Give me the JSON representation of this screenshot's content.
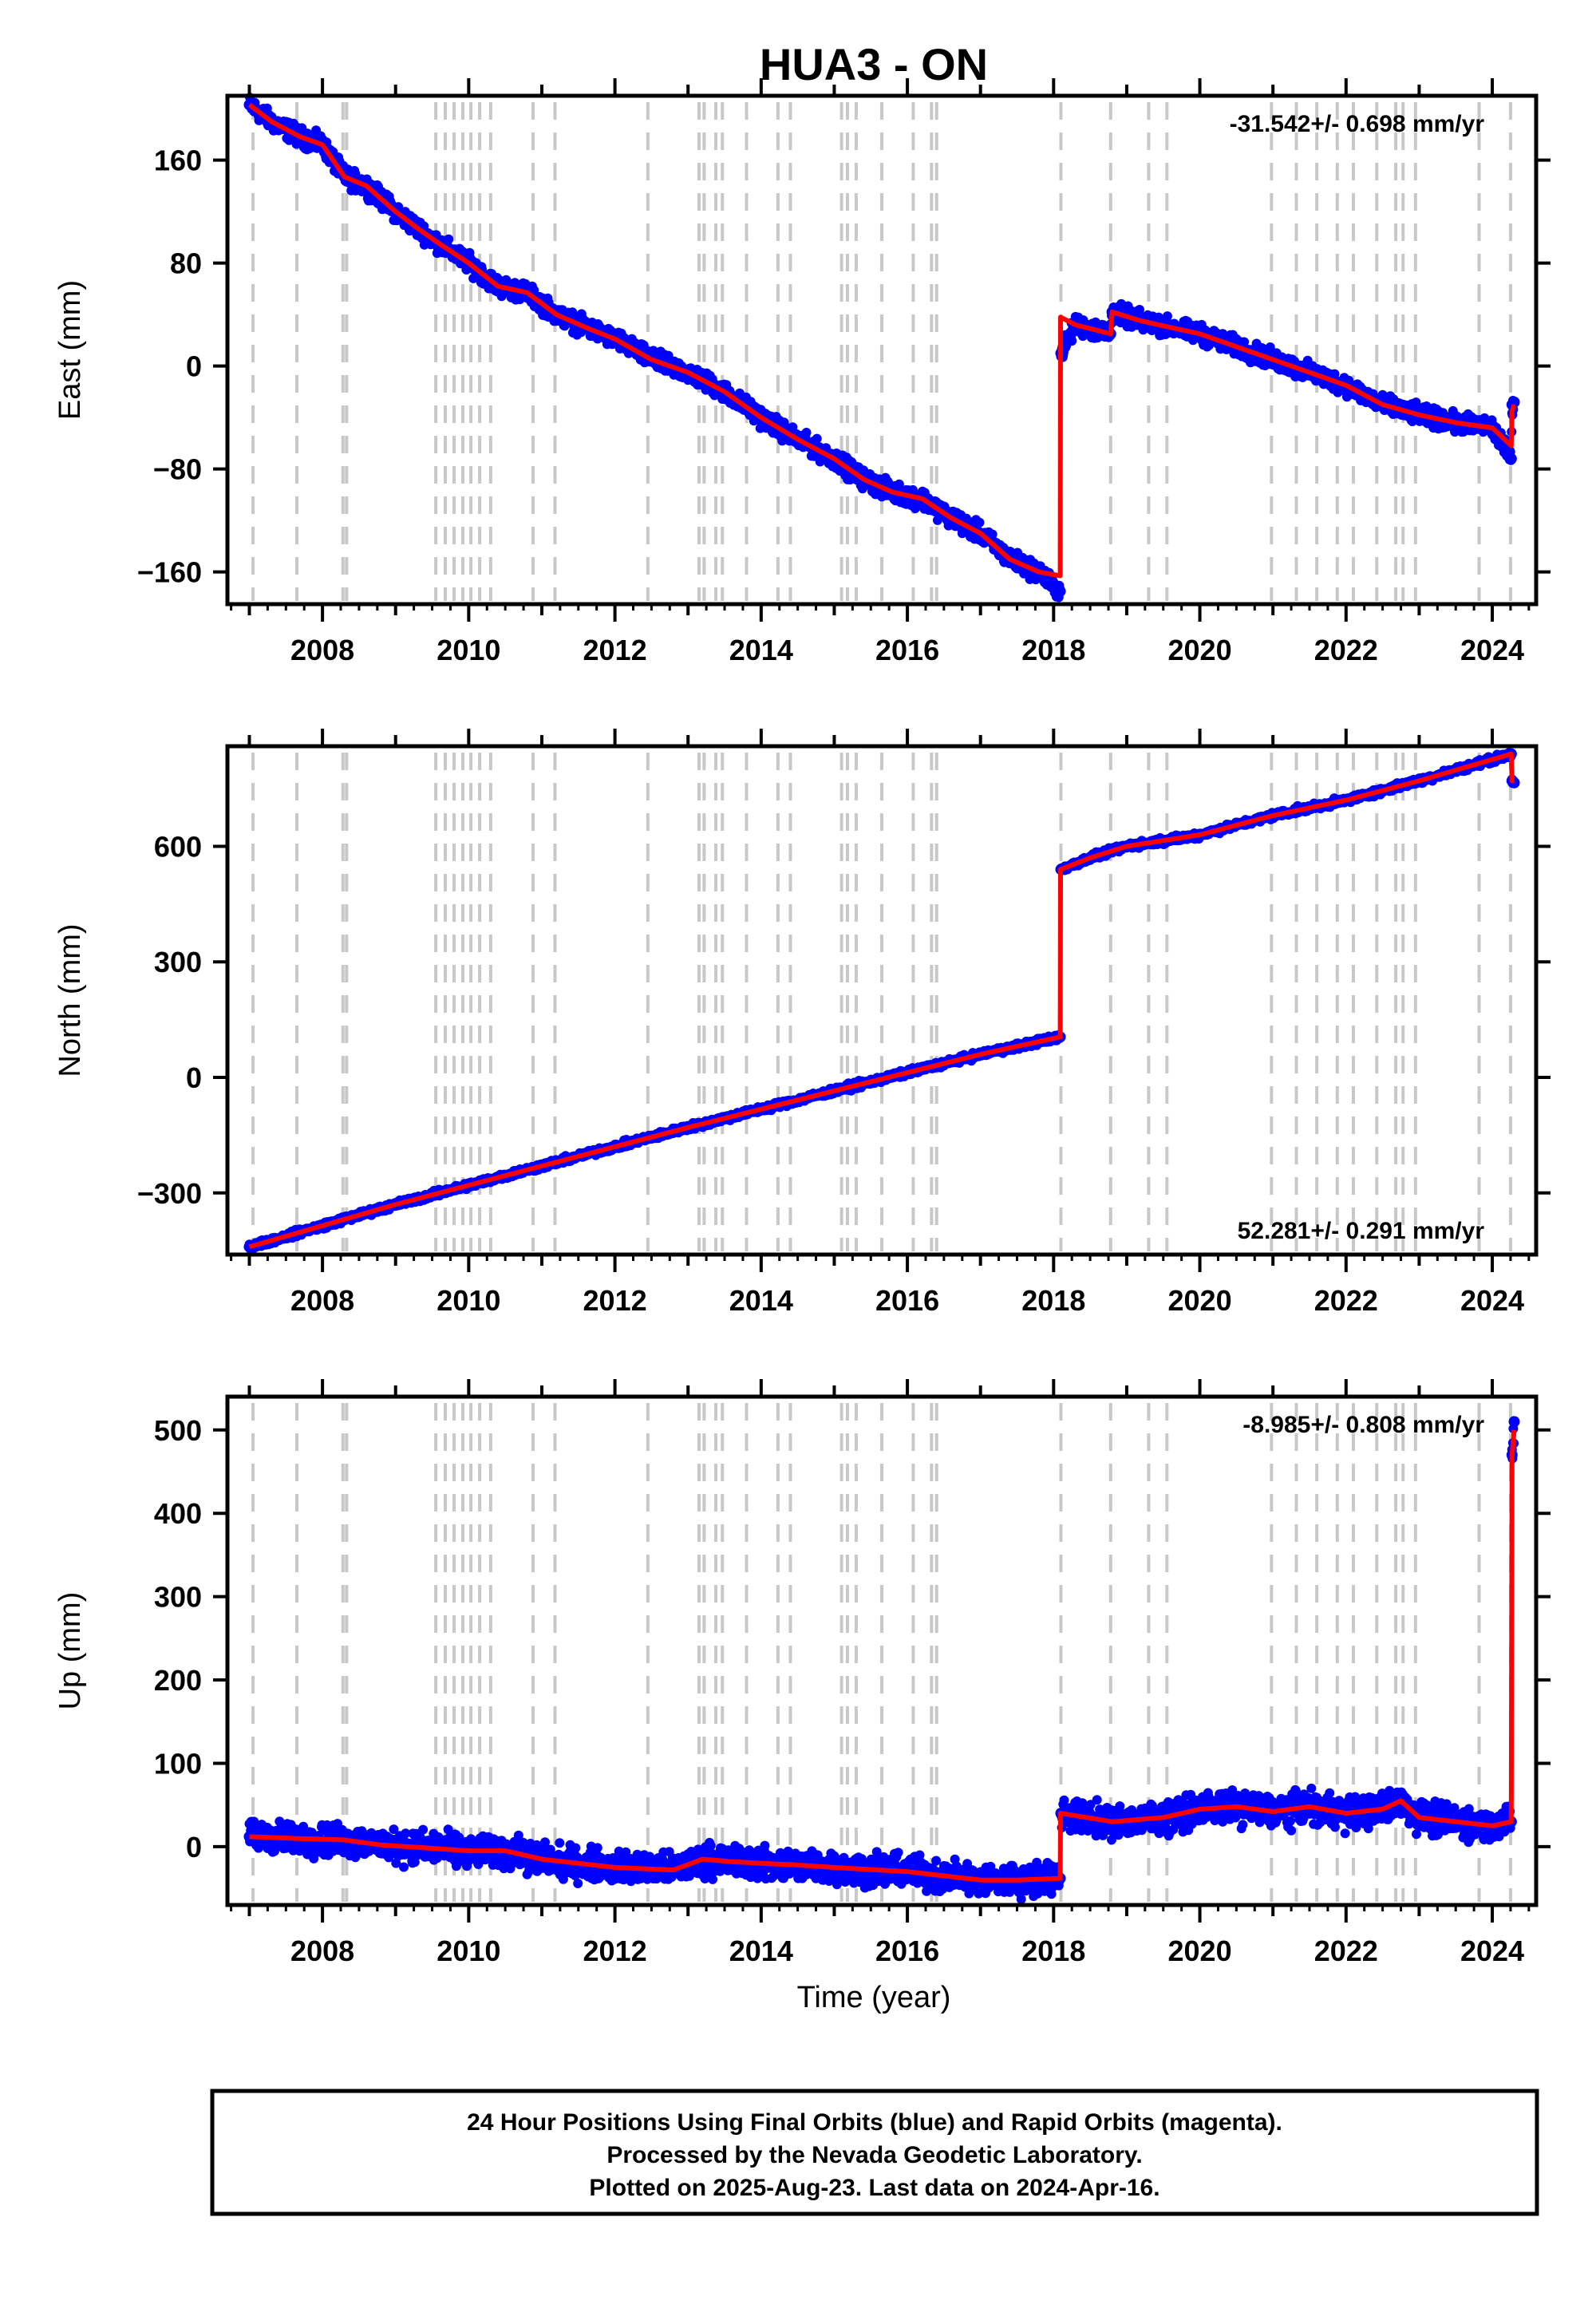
{
  "chart_data": {
    "type": "scatter",
    "title": "HUA3 - ON",
    "xlabel": "Time (year)",
    "xlim": [
      2006.7,
      2024.6
    ],
    "x_ticks": [
      2008,
      2010,
      2012,
      2014,
      2016,
      2018,
      2020,
      2022,
      2024
    ],
    "x_tick_labels": [
      "2008",
      "2010",
      "2012",
      "2014",
      "2016",
      "2018",
      "2020",
      "2022",
      "2024"
    ],
    "colors": {
      "observations": "#0000ff",
      "model": "#ff0000",
      "event_lines": "#c8c8c8",
      "frame": "#000000"
    },
    "event_lines": [
      2007.05,
      2007.65,
      2008.28,
      2008.33,
      2009.55,
      2009.68,
      2009.8,
      2009.92,
      2010.03,
      2010.15,
      2010.3,
      2010.88,
      2011.18,
      2012.45,
      2013.15,
      2013.22,
      2013.38,
      2013.47,
      2013.8,
      2014.23,
      2014.4,
      2015.1,
      2015.18,
      2015.3,
      2015.65,
      2016.08,
      2016.33,
      2016.4,
      2018.1,
      2018.78,
      2019.3,
      2019.55,
      2020.98,
      2021.32,
      2021.6,
      2021.88,
      2022.1,
      2022.42,
      2022.68,
      2022.78,
      2022.95,
      2023.82,
      2024.25
    ],
    "panels": [
      {
        "name": "East",
        "ylabel": "East (mm)",
        "ylim": [
          -185,
          210
        ],
        "y_ticks": [
          -160,
          -80,
          0,
          80,
          160
        ],
        "y_tick_labels": [
          "−160",
          "−80",
          "0",
          "80",
          "160"
        ],
        "rate_text": "-31.542+/- 0.698 mm/yr",
        "rate_position": "top-right",
        "noise_mm": 3.5,
        "model": {
          "x": [
            2007.0,
            2007.3,
            2007.7,
            2008.0,
            2008.3,
            2008.6,
            2009.0,
            2009.3,
            2009.6,
            2010.0,
            2010.4,
            2010.8,
            2011.2,
            2011.6,
            2012.0,
            2012.5,
            2013.0,
            2013.5,
            2014.0,
            2014.5,
            2015.0,
            2015.4,
            2015.8,
            2016.2,
            2016.6,
            2017.0,
            2017.4,
            2017.8,
            2018.09,
            2018.095,
            2018.3,
            2018.78,
            2018.8,
            2019.2,
            2019.6,
            2020.0,
            2020.5,
            2021.0,
            2021.5,
            2022.0,
            2022.5,
            2023.0,
            2023.5,
            2024.0,
            2024.26,
            2024.27,
            2024.3
          ],
          "y": [
            203,
            190,
            178,
            172,
            147,
            140,
            120,
            107,
            95,
            80,
            62,
            57,
            40,
            30,
            21,
            5,
            -5,
            -20,
            -40,
            -57,
            -72,
            -88,
            -98,
            -103,
            -118,
            -130,
            -150,
            -160,
            -163,
            38,
            32,
            25,
            42,
            35,
            30,
            25,
            15,
            5,
            -5,
            -15,
            -30,
            -38,
            -44,
            -48,
            -62,
            -35,
            -30
          ]
        },
        "observations": {
          "x": [
            2007.0,
            2007.3,
            2007.7,
            2008.0,
            2008.3,
            2008.6,
            2009.0,
            2009.3,
            2009.6,
            2010.0,
            2010.4,
            2010.8,
            2011.2,
            2011.6,
            2012.0,
            2012.5,
            2013.0,
            2013.5,
            2014.0,
            2014.5,
            2015.0,
            2015.4,
            2015.8,
            2016.2,
            2016.6,
            2017.0,
            2017.4,
            2017.8,
            2018.09,
            2018.1,
            2018.3,
            2018.78,
            2018.8,
            2019.2,
            2019.6,
            2020.0,
            2020.5,
            2021.0,
            2021.5,
            2022.0,
            2022.5,
            2023.0,
            2023.5,
            2024.0,
            2024.26,
            2024.27,
            2024.3
          ],
          "y": [
            203,
            190,
            178,
            172,
            147,
            140,
            120,
            107,
            95,
            80,
            62,
            57,
            40,
            30,
            21,
            5,
            -5,
            -20,
            -40,
            -57,
            -72,
            -88,
            -98,
            -103,
            -118,
            -130,
            -150,
            -160,
            -175,
            10,
            32,
            25,
            42,
            35,
            30,
            25,
            15,
            5,
            -5,
            -15,
            -30,
            -38,
            -44,
            -48,
            -72,
            -30,
            -28
          ]
        }
      },
      {
        "name": "North",
        "ylabel": "North (mm)",
        "ylim": [
          -460,
          860
        ],
        "y_ticks": [
          -300,
          0,
          300,
          600
        ],
        "y_tick_labels": [
          "−300",
          "0",
          "300",
          "600"
        ],
        "rate_text": "52.281+/- 0.291 mm/yr",
        "rate_position": "bottom-right",
        "noise_mm": 4,
        "model": {
          "x": [
            2007.0,
            2009.0,
            2011.0,
            2013.0,
            2015.0,
            2017.0,
            2018.09,
            2018.095,
            2018.5,
            2019.0,
            2020.0,
            2021.0,
            2022.0,
            2023.0,
            2024.26,
            2024.27,
            2024.3
          ],
          "y": [
            -440,
            -330,
            -230,
            -130,
            -35,
            60,
            105,
            540,
            570,
            600,
            630,
            680,
            720,
            770,
            840,
            770,
            770
          ]
        },
        "observations": {
          "x": [
            2007.0,
            2009.0,
            2011.0,
            2013.0,
            2015.0,
            2017.0,
            2018.09,
            2018.1,
            2018.5,
            2019.0,
            2020.0,
            2021.0,
            2022.0,
            2023.0,
            2024.26,
            2024.27,
            2024.3
          ],
          "y": [
            -440,
            -330,
            -230,
            -130,
            -35,
            60,
            105,
            540,
            570,
            600,
            630,
            680,
            720,
            770,
            840,
            770,
            765
          ]
        }
      },
      {
        "name": "Up",
        "ylabel": "Up (mm)",
        "ylim": [
          -70,
          540
        ],
        "y_ticks": [
          0,
          100,
          200,
          300,
          400,
          500
        ],
        "y_tick_labels": [
          "0",
          "100",
          "200",
          "300",
          "400",
          "500"
        ],
        "rate_text": "-8.985+/- 0.808 mm/yr",
        "rate_position": "top-right",
        "noise_mm": 9,
        "model": {
          "x": [
            2007.0,
            2007.6,
            2008.3,
            2008.8,
            2009.5,
            2010.0,
            2010.5,
            2011.0,
            2011.5,
            2012.0,
            2012.8,
            2013.2,
            2013.6,
            2014.0,
            2014.5,
            2015.0,
            2015.6,
            2016.0,
            2016.5,
            2017.0,
            2017.5,
            2018.09,
            2018.095,
            2018.8,
            2019.5,
            2020.0,
            2020.5,
            2021.0,
            2021.5,
            2022.0,
            2022.5,
            2022.75,
            2023.0,
            2023.5,
            2024.0,
            2024.26,
            2024.27,
            2024.3
          ],
          "y": [
            12,
            10,
            8,
            2,
            -2,
            -5,
            -5,
            -15,
            -20,
            -25,
            -28,
            -15,
            -18,
            -20,
            -22,
            -25,
            -28,
            -30,
            -35,
            -40,
            -40,
            -38,
            40,
            30,
            35,
            45,
            48,
            42,
            48,
            40,
            45,
            55,
            35,
            30,
            25,
            30,
            470,
            500
          ]
        },
        "observations": {
          "x": [
            2007.0,
            2007.6,
            2008.3,
            2008.8,
            2009.5,
            2010.0,
            2010.5,
            2011.0,
            2011.5,
            2012.0,
            2012.8,
            2013.2,
            2013.6,
            2014.0,
            2014.5,
            2015.0,
            2015.6,
            2016.0,
            2016.5,
            2017.0,
            2017.5,
            2018.09,
            2018.1,
            2018.8,
            2019.5,
            2020.0,
            2020.5,
            2021.0,
            2021.5,
            2022.0,
            2022.5,
            2022.75,
            2023.0,
            2023.5,
            2024.0,
            2024.26,
            2024.27,
            2024.3
          ],
          "y": [
            12,
            10,
            8,
            2,
            -2,
            -5,
            -5,
            -15,
            -20,
            -25,
            -28,
            -15,
            -18,
            -20,
            -22,
            -25,
            -28,
            -30,
            -35,
            -40,
            -40,
            -38,
            40,
            30,
            35,
            45,
            48,
            42,
            48,
            40,
            45,
            55,
            35,
            30,
            25,
            30,
            470,
            510
          ]
        }
      }
    ],
    "caption": [
      "24 Hour Positions Using Final Orbits (blue) and Rapid Orbits (magenta).",
      "Processed by the Nevada Geodetic Laboratory.",
      "Plotted on 2025-Aug-23. Last data on 2024-Apr-16."
    ]
  }
}
